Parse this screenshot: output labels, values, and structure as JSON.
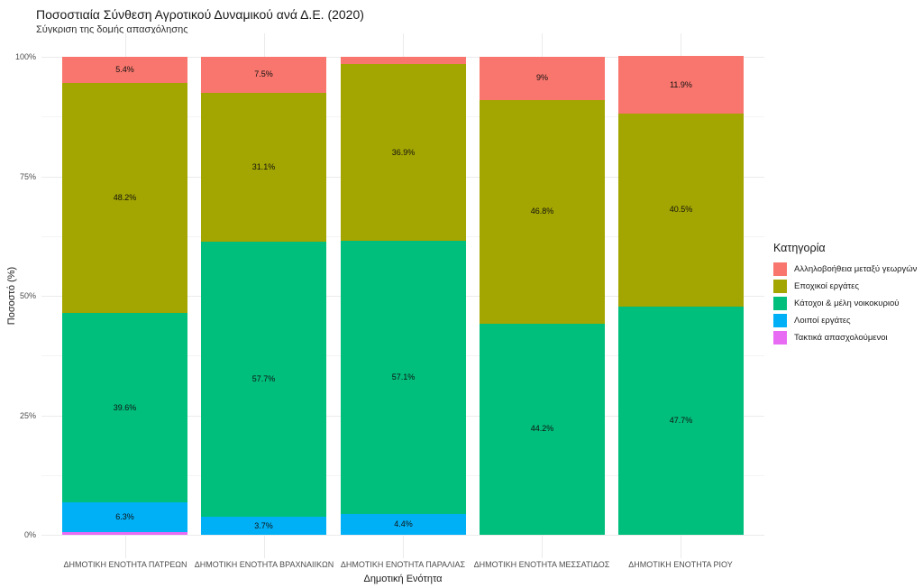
{
  "chart_data": {
    "type": "bar",
    "subtype": "stacked-percent",
    "title": "Ποσοστιαία Σύνθεση Αγροτικού Δυναμικού ανά Δ.Ε. (2020)",
    "subtitle": "Σύγκριση της δομής απασχόλησης",
    "xlabel": "Δημοτική Ενότητα",
    "ylabel": "Ποσοστό (%)",
    "ylim": [
      0,
      100
    ],
    "ytick_values": [
      0,
      25,
      50,
      75,
      100
    ],
    "ytick_labels": [
      "0%",
      "25%",
      "50%",
      "75%",
      "100%"
    ],
    "yminor_values": [
      12.5,
      37.5,
      62.5,
      87.5
    ],
    "grid": true,
    "background": "#ffffff",
    "legend": {
      "title": "Κατηγορία",
      "position": "right"
    },
    "categories": [
      "ΔΗΜΟΤΙΚΗ ΕΝΟΤΗΤΑ ΠΑΤΡΕΩΝ",
      "ΔΗΜΟΤΙΚΗ ΕΝΟΤΗΤΑ ΒΡΑΧΝΑΙΙΚΩΝ",
      "ΔΗΜΟΤΙΚΗ ΕΝΟΤΗΤΑ ΠΑΡΑΛΙΑΣ",
      "ΔΗΜΟΤΙΚΗ ΕΝΟΤΗΤΑ ΜΕΣΣΑΤΙΔΟΣ",
      "ΔΗΜΟΤΙΚΗ ΕΝΟΤΗΤΑ ΡΙΟΥ"
    ],
    "series_note": "values are percentages; series listed in stacking order top-to-bottom; labels null where not printed on the chart",
    "series": [
      {
        "name": "Αλληλοβοήθεια μεταξύ γεωργών",
        "color": "#F8766D",
        "values": [
          5.4,
          7.5,
          1.6,
          9,
          11.9
        ],
        "labels": [
          "5.4%",
          "7.5%",
          null,
          "9%",
          "11.9%"
        ]
      },
      {
        "name": "Εποχικοί εργάτες",
        "color": "#A3A500",
        "values": [
          48.2,
          31.1,
          36.9,
          46.8,
          40.5
        ],
        "labels": [
          "48.2%",
          "31.1%",
          "36.9%",
          "46.8%",
          "40.5%"
        ]
      },
      {
        "name": "Κάτοχοι & μέλη νοικοκυριού",
        "color": "#00BF7D",
        "values": [
          39.6,
          57.7,
          57.1,
          44.2,
          47.7
        ],
        "labels": [
          "39.6%",
          "57.7%",
          "57.1%",
          "44.2%",
          "47.7%"
        ]
      },
      {
        "name": "Λοιποί εργάτες",
        "color": "#00B0F6",
        "values": [
          6.3,
          3.7,
          4.4,
          0,
          0
        ],
        "labels": [
          "6.3%",
          "3.7%",
          "4.4%",
          null,
          null
        ]
      },
      {
        "name": "Τακτικά απασχολούμενοι",
        "color": "#E76BF3",
        "values": [
          0.5,
          0,
          0,
          0,
          0
        ],
        "labels": [
          null,
          null,
          null,
          null,
          null
        ]
      }
    ]
  }
}
